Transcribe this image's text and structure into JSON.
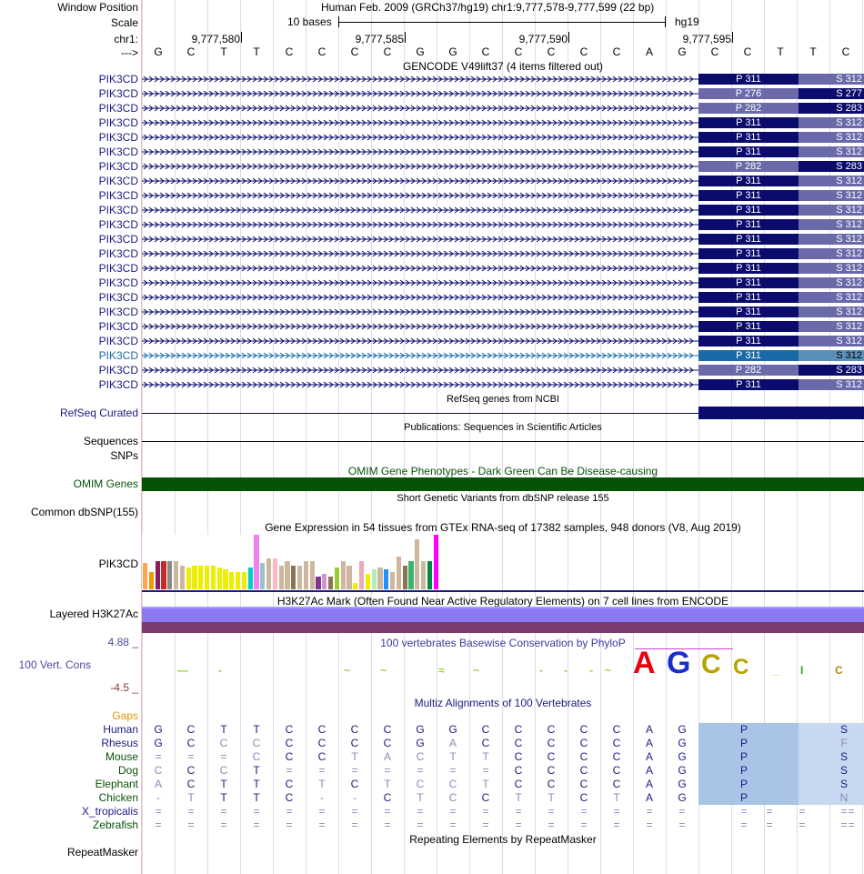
{
  "header": {
    "window_position_label": "Window Position",
    "scale_label": "Scale",
    "chrom_label": "chr1:",
    "strand_label": "--->",
    "assembly_text": "Human Feb. 2009 (GRCh37/hg19)   chr1:9,777,578-9,777,599 (22 bp)",
    "scale_text": "10 bases",
    "scale_db": "hg19",
    "positions": [
      "9,777,580",
      "9,777,585",
      "9,777,590",
      "9,777,595"
    ],
    "bases": [
      "G",
      "C",
      "T",
      "T",
      "C",
      "C",
      "C",
      "C",
      "G",
      "G",
      "C",
      "C",
      "C",
      "C",
      "C",
      "A",
      "G",
      "C",
      "C",
      "T",
      "T",
      "C"
    ]
  },
  "gencode": {
    "title": "GENCODE V49lift37 (4 items filtered out)",
    "rows": [
      {
        "label": "PIK3CD",
        "p": "P 311",
        "s": "S 312",
        "pcolor": "#0b0b6e",
        "scolor": "#6a6aaa",
        "highlight": false
      },
      {
        "label": "PIK3CD",
        "p": "P 276",
        "s": "S 277",
        "pcolor": "#6a6aaa",
        "scolor": "#0b0b6e",
        "highlight": false
      },
      {
        "label": "PIK3CD",
        "p": "P 282",
        "s": "S 283",
        "pcolor": "#6a6aaa",
        "scolor": "#0b0b6e",
        "highlight": false
      },
      {
        "label": "PIK3CD",
        "p": "P 311",
        "s": "S 312",
        "pcolor": "#0b0b6e",
        "scolor": "#6a6aaa",
        "highlight": false
      },
      {
        "label": "PIK3CD",
        "p": "P 311",
        "s": "S 312",
        "pcolor": "#0b0b6e",
        "scolor": "#6a6aaa",
        "highlight": false
      },
      {
        "label": "PIK3CD",
        "p": "P 311",
        "s": "S 312",
        "pcolor": "#0b0b6e",
        "scolor": "#6a6aaa",
        "highlight": false
      },
      {
        "label": "PIK3CD",
        "p": "P 282",
        "s": "S 283",
        "pcolor": "#6a6aaa",
        "scolor": "#0b0b6e",
        "highlight": false
      },
      {
        "label": "PIK3CD",
        "p": "P 311",
        "s": "S 312",
        "pcolor": "#0b0b6e",
        "scolor": "#6a6aaa",
        "highlight": false
      },
      {
        "label": "PIK3CD",
        "p": "P 311",
        "s": "S 312",
        "pcolor": "#0b0b6e",
        "scolor": "#6a6aaa",
        "highlight": false
      },
      {
        "label": "PIK3CD",
        "p": "P 311",
        "s": "S 312",
        "pcolor": "#0b0b6e",
        "scolor": "#6a6aaa",
        "highlight": false
      },
      {
        "label": "PIK3CD",
        "p": "P 311",
        "s": "S 312",
        "pcolor": "#0b0b6e",
        "scolor": "#6a6aaa",
        "highlight": false
      },
      {
        "label": "PIK3CD",
        "p": "P 311",
        "s": "S 312",
        "pcolor": "#0b0b6e",
        "scolor": "#6a6aaa",
        "highlight": false
      },
      {
        "label": "PIK3CD",
        "p": "P 311",
        "s": "S 312",
        "pcolor": "#0b0b6e",
        "scolor": "#6a6aaa",
        "highlight": false
      },
      {
        "label": "PIK3CD",
        "p": "P 311",
        "s": "S 312",
        "pcolor": "#0b0b6e",
        "scolor": "#6a6aaa",
        "highlight": false
      },
      {
        "label": "PIK3CD",
        "p": "P 311",
        "s": "S 312",
        "pcolor": "#0b0b6e",
        "scolor": "#6a6aaa",
        "highlight": false
      },
      {
        "label": "PIK3CD",
        "p": "P 311",
        "s": "S 312",
        "pcolor": "#0b0b6e",
        "scolor": "#6a6aaa",
        "highlight": false
      },
      {
        "label": "PIK3CD",
        "p": "P 311",
        "s": "S 312",
        "pcolor": "#0b0b6e",
        "scolor": "#6a6aaa",
        "highlight": false
      },
      {
        "label": "PIK3CD",
        "p": "P 311",
        "s": "S 312",
        "pcolor": "#0b0b6e",
        "scolor": "#6a6aaa",
        "highlight": false
      },
      {
        "label": "PIK3CD",
        "p": "P 311",
        "s": "S 312",
        "pcolor": "#0b0b6e",
        "scolor": "#6a6aaa",
        "highlight": false
      },
      {
        "label": "PIK3CD",
        "p": "P 311",
        "s": "S 312",
        "pcolor": "#1a6aa8",
        "scolor": "#5a8fb8",
        "highlight": true
      },
      {
        "label": "PIK3CD",
        "p": "P 282",
        "s": "S 283",
        "pcolor": "#6a6aaa",
        "scolor": "#0b0b6e",
        "highlight": false
      },
      {
        "label": "PIK3CD",
        "p": "P 311",
        "s": "S 312",
        "pcolor": "#0b0b6e",
        "scolor": "#6a6aaa",
        "highlight": false
      }
    ]
  },
  "refseq": {
    "title": "RefSeq genes from NCBI",
    "label": "RefSeq Curated",
    "color": "#0b0b6e"
  },
  "publications": {
    "title": "Publications: Sequences in Scientific Articles"
  },
  "sequences_label": "Sequences",
  "snps_label": "SNPs",
  "omim": {
    "title": "OMIM Gene Phenotypes - Dark Green Can Be Disease-causing",
    "label": "OMIM Genes",
    "color": "#065206"
  },
  "dbsnp": {
    "title": "Short Genetic Variants from dbSNP release 155",
    "label": "Common dbSNP(155)"
  },
  "gtex": {
    "title": "Gene Expression in 54 tissues from GTEx RNA-seq of 17382 samples, 948 donors (V8, Aug 2019)",
    "label": "PIK3CD",
    "bars": [
      {
        "v": 0.48,
        "c": "#ffa54f"
      },
      {
        "v": 0.32,
        "c": "#ee9a00"
      },
      {
        "v": 0.52,
        "c": "#8b1c62"
      },
      {
        "v": 0.52,
        "c": "#cd2626"
      },
      {
        "v": 0.52,
        "c": "#8b8b83"
      },
      {
        "v": 0.52,
        "c": "#cdb79e"
      },
      {
        "v": 0.44,
        "c": "#cdb79e"
      },
      {
        "v": 0.4,
        "c": "#eeee00"
      },
      {
        "v": 0.44,
        "c": "#eeee00"
      },
      {
        "v": 0.44,
        "c": "#eeee00"
      },
      {
        "v": 0.44,
        "c": "#eeee00"
      },
      {
        "v": 0.44,
        "c": "#eeee00"
      },
      {
        "v": 0.4,
        "c": "#eeee00"
      },
      {
        "v": 0.36,
        "c": "#eeee00"
      },
      {
        "v": 0.32,
        "c": "#eeee00"
      },
      {
        "v": 0.32,
        "c": "#eeee00"
      },
      {
        "v": 0.32,
        "c": "#eeee00"
      },
      {
        "v": 0.4,
        "c": "#00cdcd"
      },
      {
        "v": 1.0,
        "c": "#ee82ee"
      },
      {
        "v": 0.48,
        "c": "#9ac0cd"
      },
      {
        "v": 0.56,
        "c": "#cdb79e"
      },
      {
        "v": 0.56,
        "c": "#ffb6c1"
      },
      {
        "v": 0.44,
        "c": "#cdb79e"
      },
      {
        "v": 0.52,
        "c": "#cdb79e"
      },
      {
        "v": 0.44,
        "c": "#8b7355"
      },
      {
        "v": 0.44,
        "c": "#cdb79e"
      },
      {
        "v": 0.52,
        "c": "#cdb79e"
      },
      {
        "v": 0.52,
        "c": "#cdb79e"
      },
      {
        "v": 0.24,
        "c": "#7a378b"
      },
      {
        "v": 0.28,
        "c": "#cd96cd"
      },
      {
        "v": 0.24,
        "c": "#8b7355"
      },
      {
        "v": 0.4,
        "c": "#9acd32"
      },
      {
        "v": 0.52,
        "c": "#cdb79e"
      },
      {
        "v": 0.44,
        "c": "#cdb79e"
      },
      {
        "v": 0.12,
        "c": "#eeee00"
      },
      {
        "v": 0.52,
        "c": "#eea9b8"
      },
      {
        "v": 0.28,
        "c": "#eeee00"
      },
      {
        "v": 0.36,
        "c": "#b4eeb4"
      },
      {
        "v": 0.4,
        "c": "#cdb79e"
      },
      {
        "v": 0.36,
        "c": "#1e90ff"
      },
      {
        "v": 0.32,
        "c": "#cdb79e"
      },
      {
        "v": 0.6,
        "c": "#cdb79e"
      },
      {
        "v": 0.44,
        "c": "#8b7355"
      },
      {
        "v": 0.52,
        "c": "#3cb371"
      },
      {
        "v": 0.92,
        "c": "#cdb79e"
      },
      {
        "v": 0.52,
        "c": "#cdb79e"
      },
      {
        "v": 0.52,
        "c": "#008b45"
      },
      {
        "v": 1.0,
        "c": "#ff00ff"
      }
    ]
  },
  "h3k27ac": {
    "title": "H3K27Ac Mark (Often Found Near Active Regulatory Elements) on 7 cell lines from ENCODE",
    "label": "Layered H3K27Ac"
  },
  "conservation": {
    "title": "100 vertebrates Basewise Conservation by PhyloP",
    "label": "100 Vert. Cons",
    "ymax": "4.88 _",
    "ymin": "-4.5 _"
  },
  "multiz": {
    "title": "Multiz Alignments of 100 Vertebrates",
    "gaps_label": "Gaps",
    "species": [
      {
        "name": "Human",
        "color": "#1b1b80",
        "cells": [
          "G",
          "C",
          "T",
          "T",
          "C",
          "C",
          "C",
          "C",
          "G",
          "G",
          "C",
          "C",
          "C",
          "C",
          "C",
          "A",
          "G"
        ],
        "p": "P",
        "s": "S"
      },
      {
        "name": "Rhesus",
        "color": "#1b1b80",
        "cells": [
          "G",
          "C",
          "C",
          "C",
          "C",
          "C",
          "C",
          "C",
          "G",
          "A",
          "C",
          "C",
          "C",
          "C",
          "C",
          "A",
          "G"
        ],
        "p": "P",
        "s": "F"
      },
      {
        "name": "Mouse",
        "color": "#065206",
        "cells": [
          "=",
          "=",
          "=",
          "C",
          "C",
          "C",
          "T",
          "A",
          "C",
          "T",
          "T",
          "C",
          "C",
          "C",
          "C",
          "A",
          "G"
        ],
        "p": "P",
        "s": "S"
      },
      {
        "name": "Dog",
        "color": "#065206",
        "cells": [
          "C",
          "C",
          "C",
          "T",
          "=",
          "=",
          "=",
          "=",
          "=",
          "=",
          "=",
          "C",
          "C",
          "C",
          "C",
          "A",
          "G"
        ],
        "p": "P",
        "s": "S"
      },
      {
        "name": "Elephant",
        "color": "#065206",
        "cells": [
          "A",
          "C",
          "T",
          "T",
          "C",
          "T",
          "C",
          "T",
          "C",
          "C",
          "T",
          "C",
          "C",
          "C",
          "C",
          "A",
          "G"
        ],
        "p": "P",
        "s": "S"
      },
      {
        "name": "Chicken",
        "color": "#065206",
        "cells": [
          "-",
          "T",
          "T",
          "T",
          "C",
          "-",
          "-",
          "C",
          "T",
          "C",
          "C",
          "T",
          "T",
          "C",
          "T",
          "A",
          "G"
        ],
        "p": "P",
        "s": "N"
      },
      {
        "name": "X_tropicalis",
        "color": "#1b1b80",
        "cells": [
          "=",
          "=",
          "=",
          "=",
          "=",
          "=",
          "=",
          "=",
          "=",
          "=",
          "=",
          "=",
          "=",
          "=",
          "=",
          "=",
          "="
        ],
        "p": "=",
        "s": "="
      },
      {
        "name": "Zebrafish",
        "color": "#065206",
        "cells": [
          "=",
          "=",
          "=",
          "=",
          "=",
          "=",
          "=",
          "=",
          "=",
          "=",
          "=",
          "=",
          "=",
          "=",
          "=",
          "=",
          "="
        ],
        "p": "=",
        "s": "="
      }
    ]
  },
  "repeatmasker": {
    "title": "Repeating Elements by RepeatMasker",
    "label": "RepeatMasker"
  }
}
